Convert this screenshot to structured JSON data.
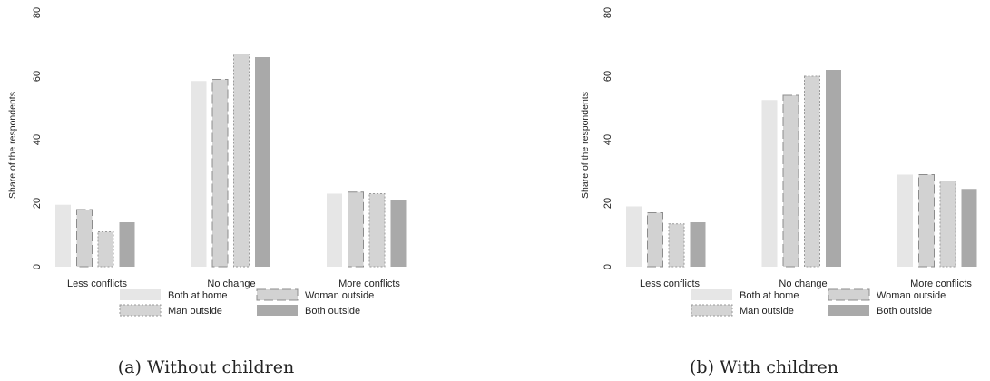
{
  "chart_data": [
    {
      "type": "bar",
      "caption": "(a) Without children",
      "ylabel": "Share of the respondents",
      "xlabel": "",
      "ylim": [
        0,
        80
      ],
      "yticks": [
        0,
        20,
        40,
        60,
        80
      ],
      "categories": [
        "Less conflicts",
        "No change",
        "More conflicts"
      ],
      "series": [
        {
          "name": "Both at home",
          "values": [
            19.5,
            58.5,
            23
          ]
        },
        {
          "name": "Woman outside",
          "values": [
            18,
            59,
            23.5
          ]
        },
        {
          "name": "Man outside",
          "values": [
            11,
            67,
            23
          ]
        },
        {
          "name": "Both outside",
          "values": [
            14,
            66,
            21
          ]
        }
      ],
      "legend": "bottom",
      "grid": false
    },
    {
      "type": "bar",
      "caption": "(b) With children",
      "ylabel": "Share of the respondents",
      "xlabel": "",
      "ylim": [
        0,
        80
      ],
      "yticks": [
        0,
        20,
        40,
        60,
        80
      ],
      "categories": [
        "Less conflicts",
        "No change",
        "More conflicts"
      ],
      "series": [
        {
          "name": "Both at home",
          "values": [
            19,
            52.5,
            29
          ]
        },
        {
          "name": "Woman outside",
          "values": [
            17,
            54,
            29
          ]
        },
        {
          "name": "Man outside",
          "values": [
            13.5,
            60,
            27
          ]
        },
        {
          "name": "Both outside",
          "values": [
            14,
            62,
            24.5
          ]
        }
      ],
      "legend": "bottom",
      "grid": false
    }
  ],
  "series_styles": [
    {
      "fill": "#e6e6e6",
      "stroke": "none",
      "dash": ""
    },
    {
      "fill": "#d2d2d2",
      "stroke": "#8c8c8c",
      "dash": "10,4"
    },
    {
      "fill": "#d4d4d4",
      "stroke": "#9a9a9a",
      "dash": "2,2"
    },
    {
      "fill": "#a9a9a9",
      "stroke": "none",
      "dash": ""
    }
  ]
}
